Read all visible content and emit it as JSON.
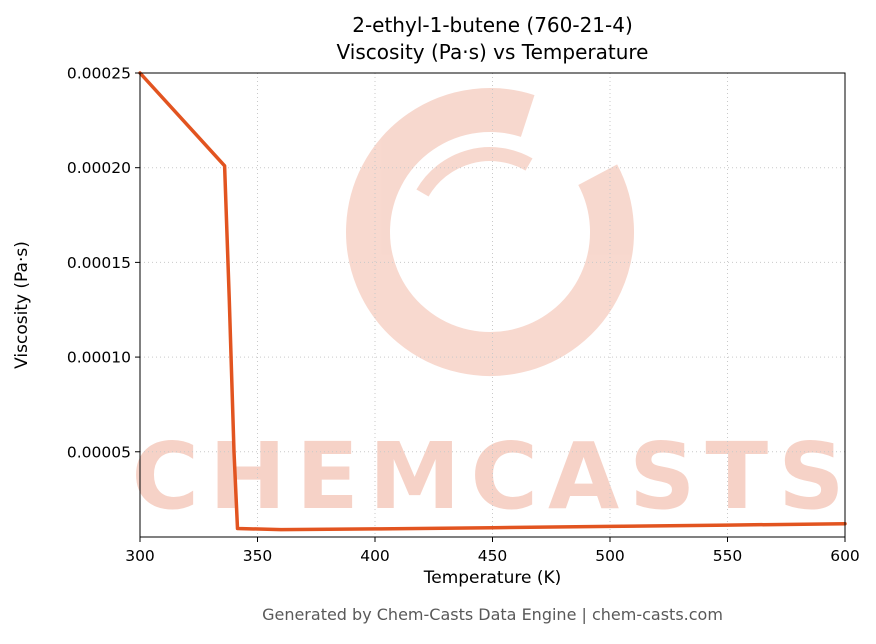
{
  "title": {
    "line1": "2-ethyl-1-butene (760-21-4)",
    "line2": "Viscosity (Pa·s) vs Temperature"
  },
  "watermark": {
    "text": "CHEMCASTS",
    "color": "#e98b6d"
  },
  "footer": {
    "text": "Generated by Chem-Casts Data Engine | chem-casts.com"
  },
  "chart_data": {
    "type": "line",
    "title": "2-ethyl-1-butene (760-21-4) Viscosity (Pa·s) vs Temperature",
    "xlabel": "Temperature (K)",
    "ylabel": "Viscosity (Pa·s)",
    "xlim": [
      300,
      600
    ],
    "ylim": [
      5e-06,
      0.00025
    ],
    "xticks": [
      300,
      350,
      400,
      450,
      500,
      550,
      600
    ],
    "xtick_labels": [
      "300",
      "350",
      "400",
      "450",
      "500",
      "550",
      "600"
    ],
    "yticks": [
      5e-05,
      0.0001,
      0.00015,
      0.0002,
      0.00025
    ],
    "ytick_labels": [
      "0.00005",
      "0.00010",
      "0.00015",
      "0.00020",
      "0.00025"
    ],
    "grid": true,
    "legend": false,
    "line_color": "#e25420",
    "series": [
      {
        "name": "viscosity_vs_temperature",
        "points": [
          [
            300,
            0.00025
          ],
          [
            336,
            0.000201
          ],
          [
            338,
            0.00013
          ],
          [
            340,
            5e-05
          ],
          [
            341.5,
            9.5e-06
          ],
          [
            360,
            8.9e-06
          ],
          [
            400,
            9.3e-06
          ],
          [
            450,
            9.9e-06
          ],
          [
            500,
            1.06e-05
          ],
          [
            550,
            1.13e-05
          ],
          [
            600,
            1.2e-05
          ]
        ]
      }
    ]
  }
}
